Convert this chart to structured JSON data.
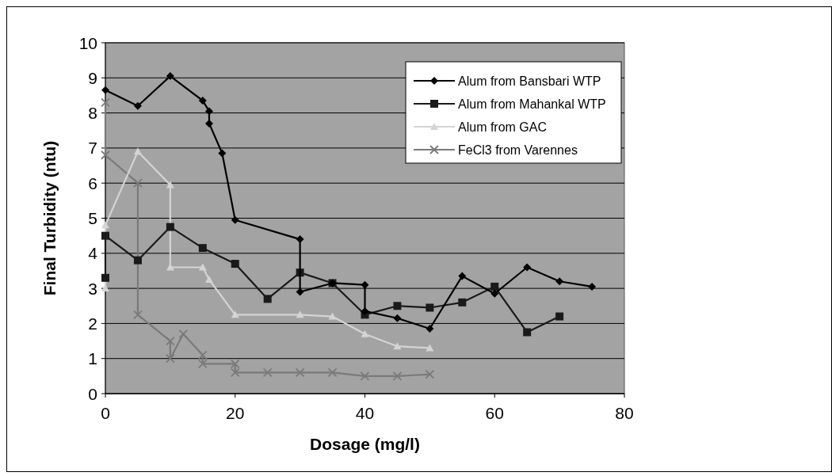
{
  "chart_data": {
    "type": "line",
    "xlabel": "Dosage (mg/l)",
    "ylabel": "Final Turbidity (ntu)",
    "xlim": [
      0,
      80
    ],
    "xticks": [
      0,
      20,
      40,
      60,
      80
    ],
    "ylim": [
      0,
      10
    ],
    "yticks": [
      0,
      1,
      2,
      3,
      4,
      5,
      6,
      7,
      8,
      9,
      10
    ],
    "grid": "y",
    "legend": "top right",
    "line_style": "solid",
    "series": [
      {
        "name": "Alum from Bansbari WTP",
        "color": "#000000",
        "marker": "diamond",
        "x": [
          0,
          5,
          10,
          15,
          16,
          16,
          18,
          20,
          30,
          30,
          35,
          40,
          40,
          45,
          50,
          55,
          60,
          65,
          70,
          75
        ],
        "values": [
          8.65,
          8.2,
          9.05,
          8.35,
          8.05,
          7.7,
          6.85,
          4.95,
          4.4,
          2.9,
          3.15,
          3.1,
          2.35,
          2.15,
          1.85,
          3.35,
          2.85,
          3.6,
          3.2,
          3.05
        ]
      },
      {
        "name": "Alum from Mahankal WTP",
        "color": "#1a1a1a",
        "marker": "square",
        "x": [
          0,
          0,
          5,
          10,
          15,
          20,
          25,
          30,
          35,
          40,
          45,
          50,
          55,
          60,
          65,
          70
        ],
        "values": [
          3.3,
          4.5,
          3.8,
          4.75,
          4.15,
          3.7,
          2.7,
          3.45,
          3.15,
          2.25,
          2.5,
          2.45,
          2.6,
          3.05,
          1.75,
          2.2
        ]
      },
      {
        "name": "Alum from GAC",
        "color": "#d4d4d4",
        "marker": "triangle",
        "x": [
          0,
          0,
          5,
          10,
          10,
          15,
          16,
          20,
          30,
          35,
          40,
          45,
          50
        ],
        "values": [
          3.0,
          4.8,
          6.9,
          5.95,
          3.6,
          3.6,
          3.25,
          2.25,
          2.25,
          2.2,
          1.7,
          1.35,
          1.3
        ]
      },
      {
        "name": "FeCl3 from Varennes",
        "color": "#7a7a7a",
        "marker": "cross",
        "x": [
          0,
          0,
          5,
          5,
          10,
          10,
          12,
          15,
          15,
          20,
          20,
          25,
          30,
          35,
          40,
          45,
          50
        ],
        "values": [
          8.3,
          6.8,
          6.0,
          2.25,
          1.5,
          1.0,
          1.7,
          1.1,
          0.85,
          0.85,
          0.6,
          0.6,
          0.6,
          0.6,
          0.5,
          0.5,
          0.55
        ]
      }
    ]
  }
}
